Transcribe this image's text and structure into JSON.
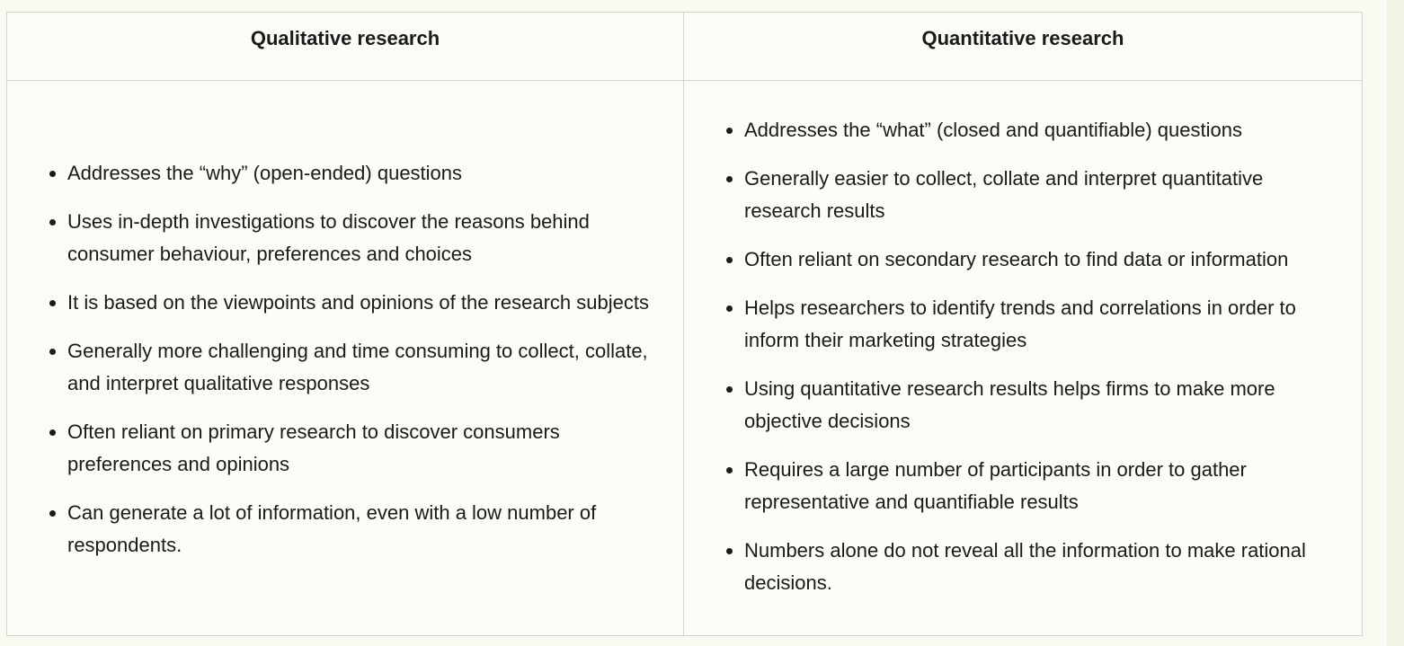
{
  "table": {
    "headers": {
      "qualitative": "Qualitative research",
      "quantitative": "Quantitative research"
    },
    "qualitative_points": [
      "Addresses the “why” (open-ended) questions",
      "Uses in-depth investigations to discover the reasons behind consumer behaviour, preferences and choices",
      "It is based on the viewpoints and opinions of the research subjects",
      "Generally more challenging and time consuming to collect, collate, and interpret qualitative responses",
      "Often reliant on primary research to discover consumers preferences and opinions",
      "Can generate a lot of information, even with a low number of respondents."
    ],
    "quantitative_points": [
      "Addresses the “what” (closed and quantifiable) questions",
      "Generally easier to collect, collate and interpret quantitative research results",
      "Often reliant on secondary research to find data or information",
      "Helps researchers to identify trends and correlations in order to inform their marketing strategies",
      "Using quantitative research results helps firms to make more objective decisions",
      "Requires a large number of participants in order to gather representative and quantifiable results",
      "Numbers alone do not reveal all the information to make rational decisions."
    ]
  }
}
